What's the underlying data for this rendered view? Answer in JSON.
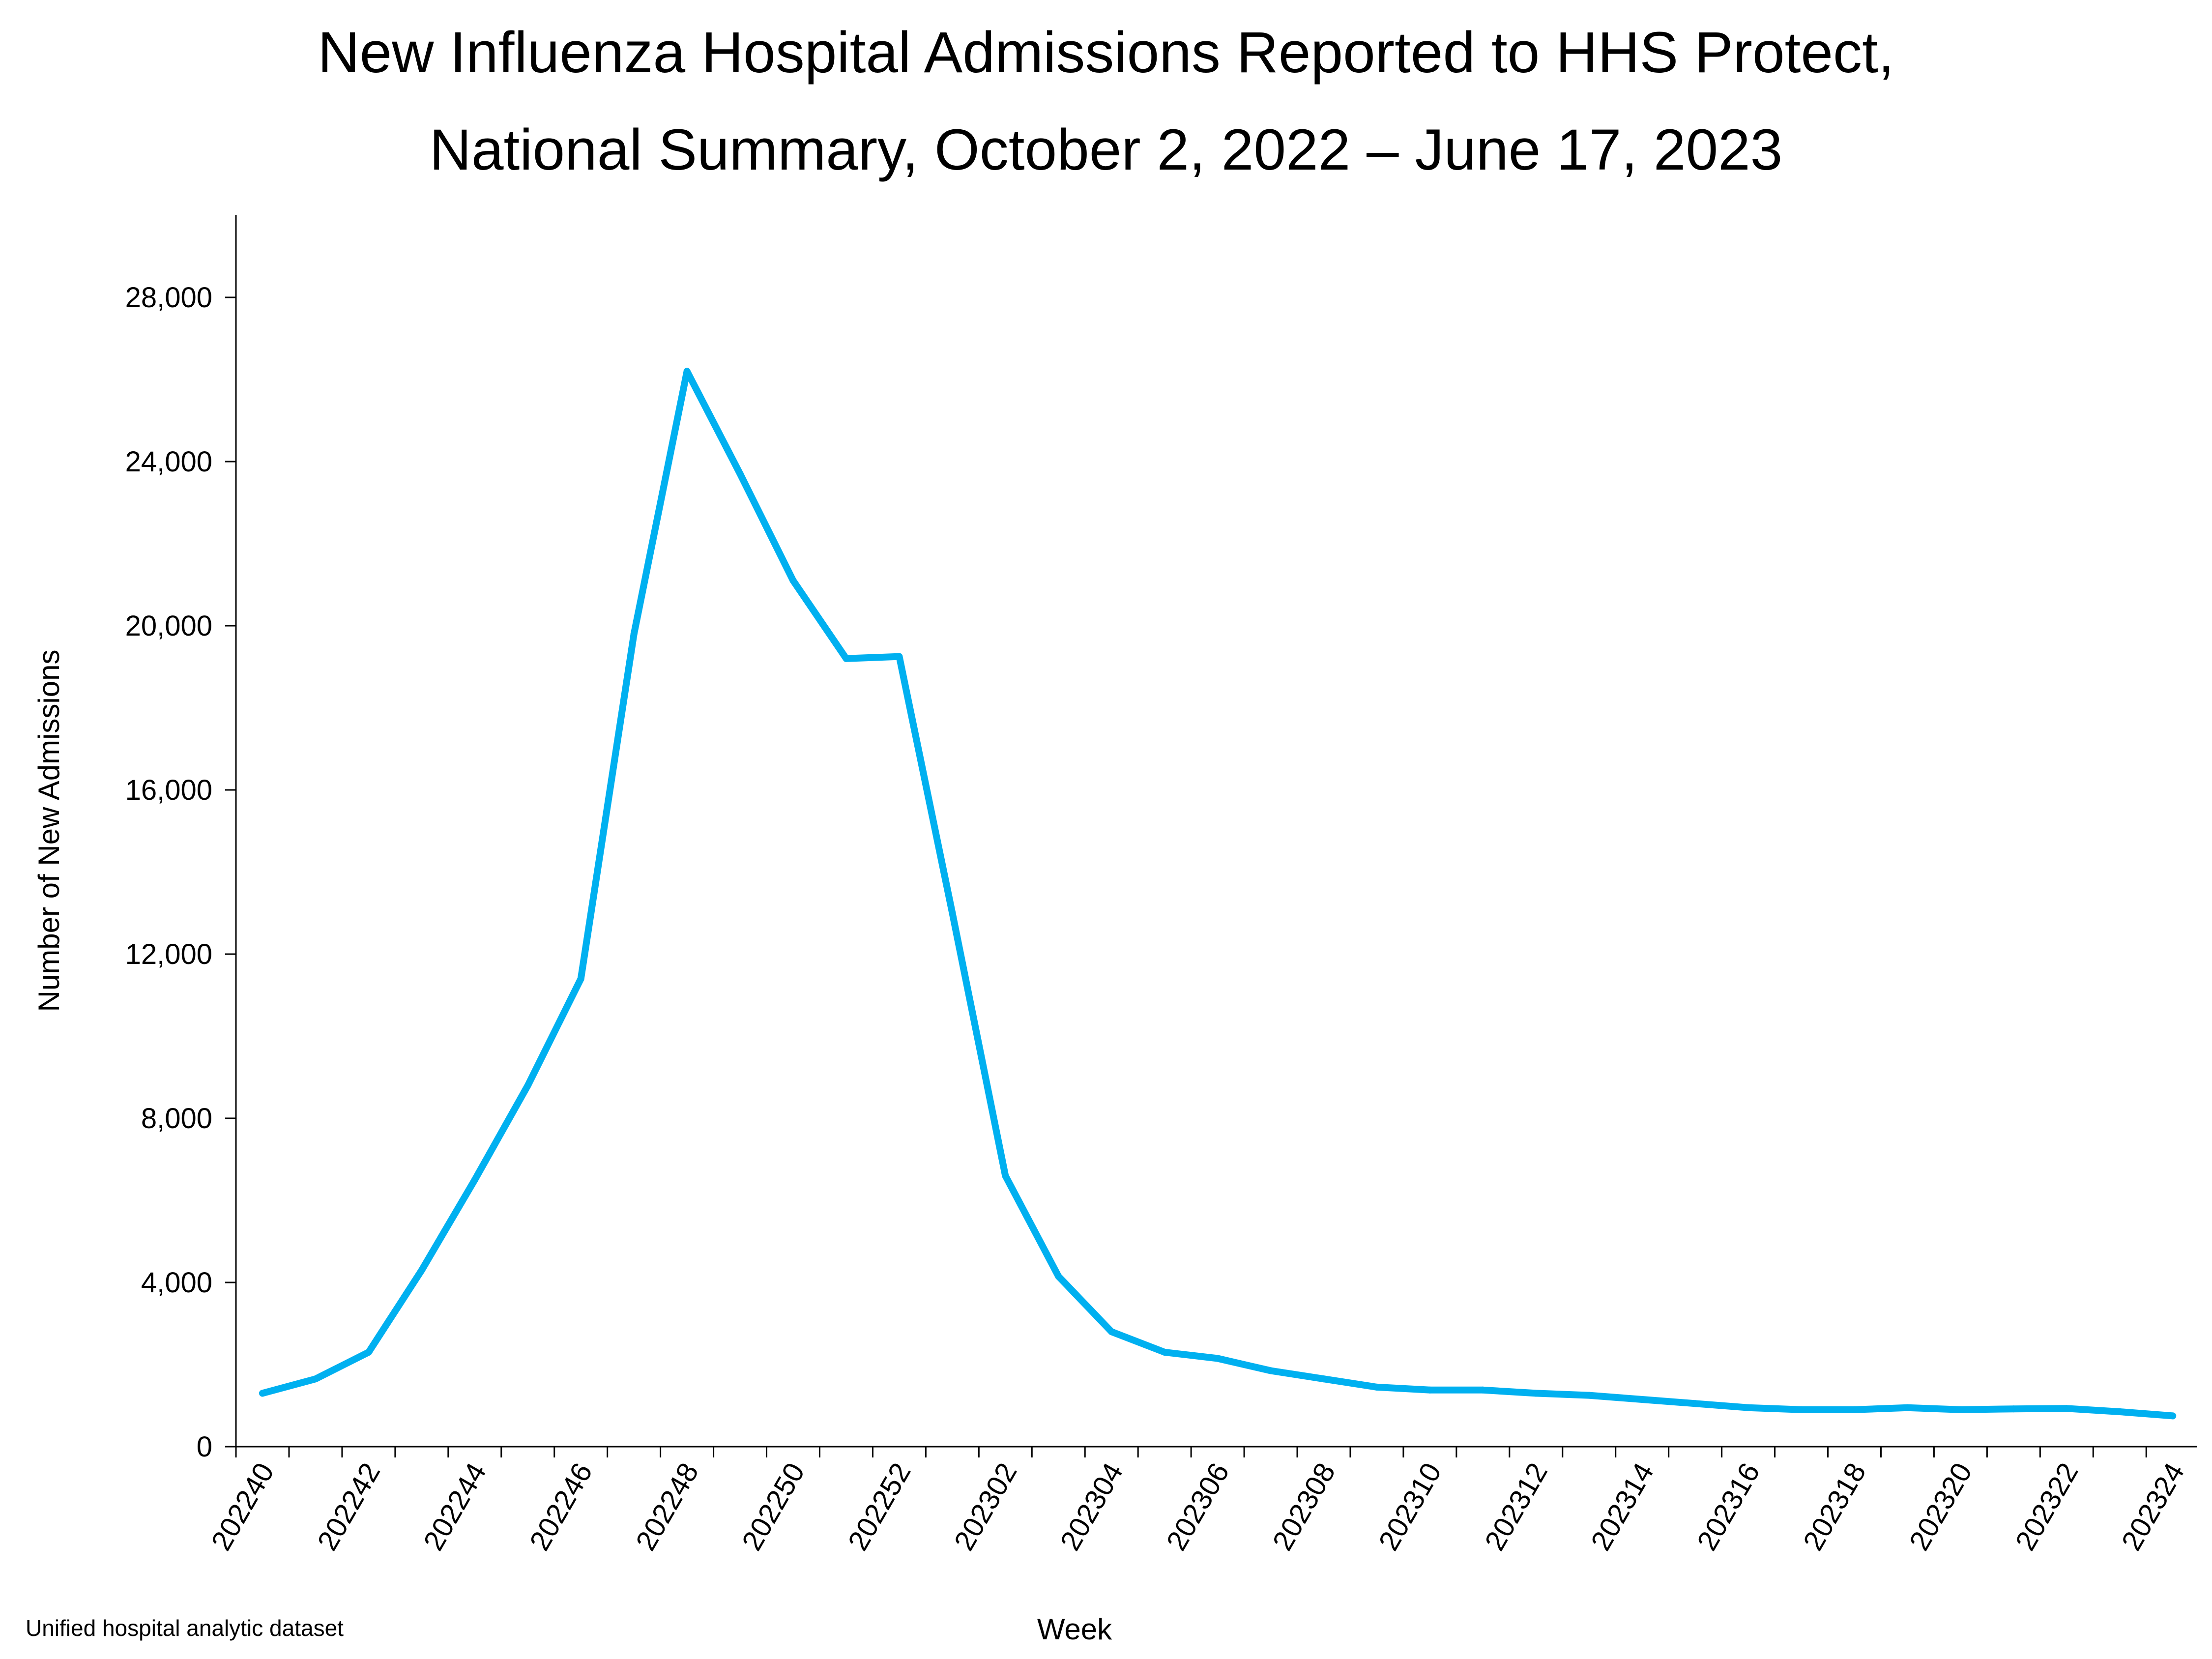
{
  "chart_data": {
    "type": "line",
    "title_line1": "New Influenza Hospital Admissions Reported to HHS Protect,",
    "title_line2": "National Summary, October 2, 2022 – June 17, 2023",
    "xlabel": "Week",
    "ylabel": "Number of New Admissions",
    "source": "Unified hospital analytic dataset",
    "ylim": [
      0,
      30000
    ],
    "yticks": [
      0,
      4000,
      8000,
      12000,
      16000,
      20000,
      24000,
      28000
    ],
    "ytick_labels": [
      "0",
      "4,000",
      "8,000",
      "12,000",
      "16,000",
      "20,000",
      "24,000",
      "28,000"
    ],
    "x_tick_labels": [
      "202240",
      "202242",
      "202244",
      "202246",
      "202248",
      "202250",
      "202252",
      "202302",
      "202304",
      "202306",
      "202308",
      "202310",
      "202312",
      "202314",
      "202316",
      "202318",
      "202320",
      "202322",
      "202324"
    ],
    "grid": false,
    "line_color": "#00B0F0",
    "series": [
      {
        "weeks": [
          "202240",
          "202241",
          "202242",
          "202243",
          "202244",
          "202245",
          "202246",
          "202247",
          "202248",
          "202249",
          "202250",
          "202251",
          "202252",
          "202301",
          "202302",
          "202303",
          "202304",
          "202305",
          "202306",
          "202307",
          "202308",
          "202309",
          "202310",
          "202311",
          "202312",
          "202313",
          "202314",
          "202315",
          "202316",
          "202317",
          "202318",
          "202319",
          "202320",
          "202321",
          "202322",
          "202323",
          "202324"
        ],
        "values": [
          1300,
          1650,
          2300,
          4300,
          6500,
          8800,
          11400,
          19800,
          26200,
          23700,
          21100,
          19200,
          19250,
          13000,
          6600,
          4150,
          2800,
          2300,
          2150,
          1850,
          1650,
          1450,
          1380,
          1380,
          1300,
          1250,
          1150,
          1050,
          950,
          900,
          900,
          950,
          900,
          920,
          930,
          850,
          750
        ]
      }
    ]
  }
}
